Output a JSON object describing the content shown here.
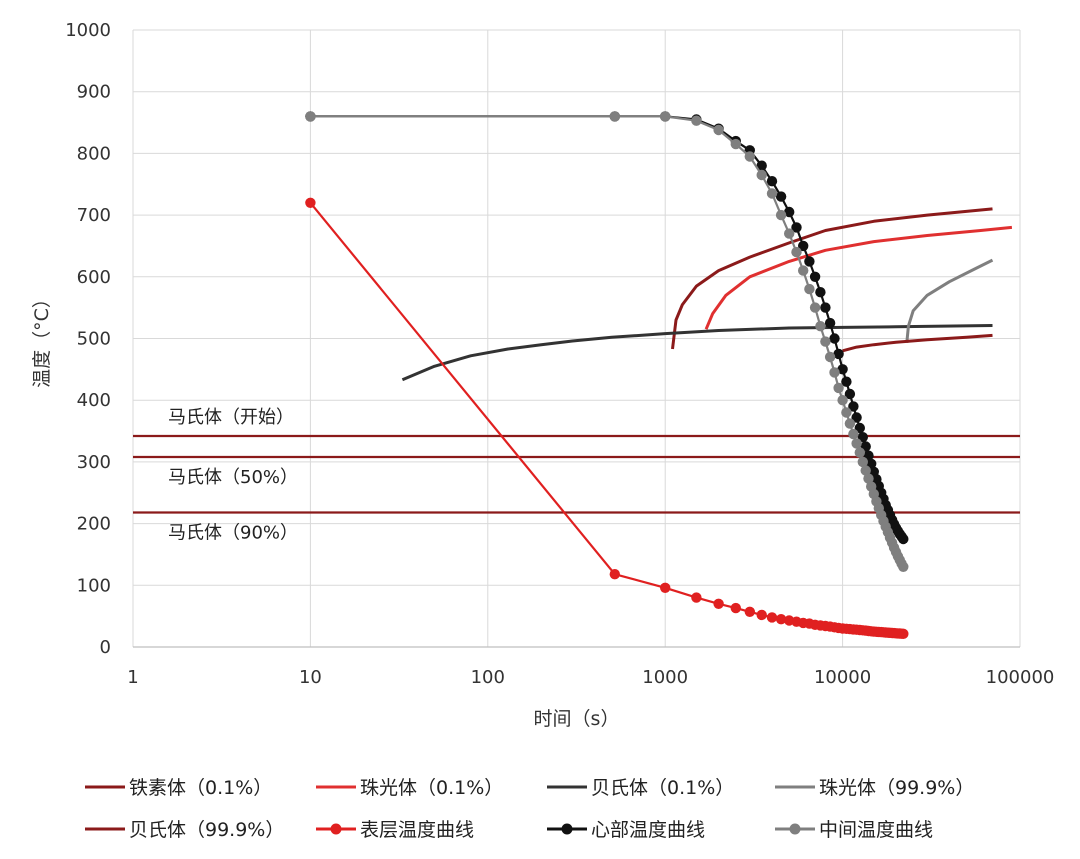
{
  "chart_data": {
    "type": "scatter",
    "x_scale": "log",
    "xlim": [
      1,
      100000
    ],
    "ylim": [
      0,
      1000
    ],
    "xlabel": "时间（s）",
    "ylabel": "温度（°C）",
    "x_ticks": [
      "1",
      "10",
      "100",
      "1000",
      "10000",
      "100000"
    ],
    "y_ticks": [
      "0",
      "100",
      "200",
      "300",
      "400",
      "500",
      "600",
      "700",
      "800",
      "900",
      "1000"
    ],
    "grid": true,
    "legend_position": "bottom",
    "series": [
      {
        "name": "铁素体（0.1%）",
        "color": "#8b1a1a",
        "marker": "none",
        "x": [
          1100,
          1150,
          1250,
          1500,
          2000,
          3000,
          5000,
          8000,
          15000,
          30000,
          70000
        ],
        "y": [
          483,
          530,
          555,
          585,
          610,
          632,
          655,
          675,
          690,
          700,
          710
        ]
      },
      {
        "name": "珠光体（0.1%）",
        "color": "#e03030",
        "marker": "none",
        "x": [
          1700,
          1850,
          2200,
          3000,
          5000,
          8000,
          15000,
          30000,
          60000,
          90000
        ],
        "y": [
          515,
          540,
          570,
          600,
          625,
          643,
          657,
          667,
          675,
          680
        ]
      },
      {
        "name": "贝氏体（0.1%）",
        "color": "#333333",
        "marker": "none",
        "x": [
          33,
          50,
          80,
          130,
          200,
          300,
          500,
          1000,
          2000,
          5000,
          10000,
          20000,
          70000
        ],
        "y": [
          433,
          455,
          472,
          483,
          490,
          496,
          502,
          508,
          513,
          517,
          518,
          519,
          521
        ]
      },
      {
        "name": "珠光体（99.9%）",
        "color": "#7f7f7f",
        "marker": "none",
        "x": [
          23000,
          23500,
          25000,
          30000,
          40000,
          55000,
          70000
        ],
        "y": [
          493,
          520,
          545,
          570,
          592,
          612,
          627
        ]
      },
      {
        "name": "贝氏体（99.9%）",
        "color": "#8b1a1a",
        "marker": "none",
        "x": [
          10000,
          12000,
          15000,
          20000,
          30000,
          50000,
          70000
        ],
        "y": [
          480,
          486,
          490,
          494,
          498,
          502,
          505
        ]
      },
      {
        "name": "表层温度曲线",
        "color": "#e02020",
        "marker": "circle",
        "x": [
          10,
          520,
          1000,
          1500,
          2000,
          2500,
          3000,
          3500,
          4000,
          4500,
          5000,
          5500,
          6000,
          6500,
          7000,
          7500,
          8000,
          8500,
          9000,
          9500,
          10000,
          10500,
          11000,
          11500,
          12000,
          12500,
          13000,
          13500,
          14000,
          14500,
          15000,
          15500,
          16000,
          16500,
          17000,
          17500,
          18000,
          18500,
          19000,
          19500,
          20000,
          20500,
          21000,
          21500,
          22000
        ],
        "y": [
          720,
          118,
          96,
          80,
          70,
          63,
          57,
          52,
          48,
          45,
          43,
          41,
          39,
          38,
          36,
          35,
          34,
          33,
          32,
          31,
          30,
          29.5,
          29,
          28.5,
          28,
          27.5,
          27,
          26.5,
          26,
          25.5,
          25,
          24.7,
          24.4,
          24.1,
          23.8,
          23.5,
          23.2,
          23,
          22.7,
          22.5,
          22.2,
          22,
          21.8,
          21.6,
          21.4
        ]
      },
      {
        "name": "心部温度曲线",
        "color": "#111111",
        "marker": "circle",
        "x": [
          10,
          520,
          1000,
          1500,
          2000,
          2500,
          3000,
          3500,
          4000,
          4500,
          5000,
          5500,
          6000,
          6500,
          7000,
          7500,
          8000,
          8500,
          9000,
          9500,
          10000,
          10500,
          11000,
          11500,
          12000,
          12500,
          13000,
          13500,
          14000,
          14500,
          15000,
          15500,
          16000,
          16500,
          17000,
          17500,
          18000,
          18500,
          19000,
          19500,
          20000,
          20500,
          21000,
          21500,
          22000
        ],
        "y": [
          860,
          860,
          860,
          855,
          840,
          820,
          805,
          780,
          755,
          730,
          705,
          680,
          650,
          625,
          600,
          575,
          550,
          525,
          500,
          475,
          450,
          430,
          410,
          390,
          372,
          355,
          340,
          325,
          310,
          297,
          284,
          272,
          261,
          250,
          240,
          230,
          222,
          214,
          206,
          199,
          193,
          188,
          183,
          179,
          175
        ]
      },
      {
        "name": "中间温度曲线",
        "color": "#7f7f7f",
        "marker": "circle",
        "x": [
          10,
          520,
          1000,
          1500,
          2000,
          2500,
          3000,
          3500,
          4000,
          4500,
          5000,
          5500,
          6000,
          6500,
          7000,
          7500,
          8000,
          8500,
          9000,
          9500,
          10000,
          10500,
          11000,
          11500,
          12000,
          12500,
          13000,
          13500,
          14000,
          14500,
          15000,
          15500,
          16000,
          16500,
          17000,
          17500,
          18000,
          18500,
          19000,
          19500,
          20000,
          20500,
          21000,
          21500,
          22000
        ],
        "y": [
          860,
          860,
          860,
          853,
          838,
          815,
          795,
          765,
          735,
          700,
          670,
          640,
          610,
          580,
          550,
          520,
          495,
          470,
          445,
          420,
          400,
          380,
          362,
          345,
          330,
          315,
          300,
          286,
          273,
          260,
          248,
          236,
          225,
          214,
          204,
          195,
          186,
          177,
          169,
          161,
          154,
          147,
          141,
          135,
          130
        ]
      }
    ],
    "reference_lines": [
      {
        "label": "马氏体（开始）",
        "y": 342,
        "color": "#8b1a1a",
        "label_side": "above"
      },
      {
        "label": "马氏体（50%）",
        "y": 308,
        "color": "#8b1a1a",
        "label_side": "below"
      },
      {
        "label": "马氏体（90%）",
        "y": 218,
        "color": "#8b1a1a",
        "label_side": "below"
      }
    ]
  }
}
